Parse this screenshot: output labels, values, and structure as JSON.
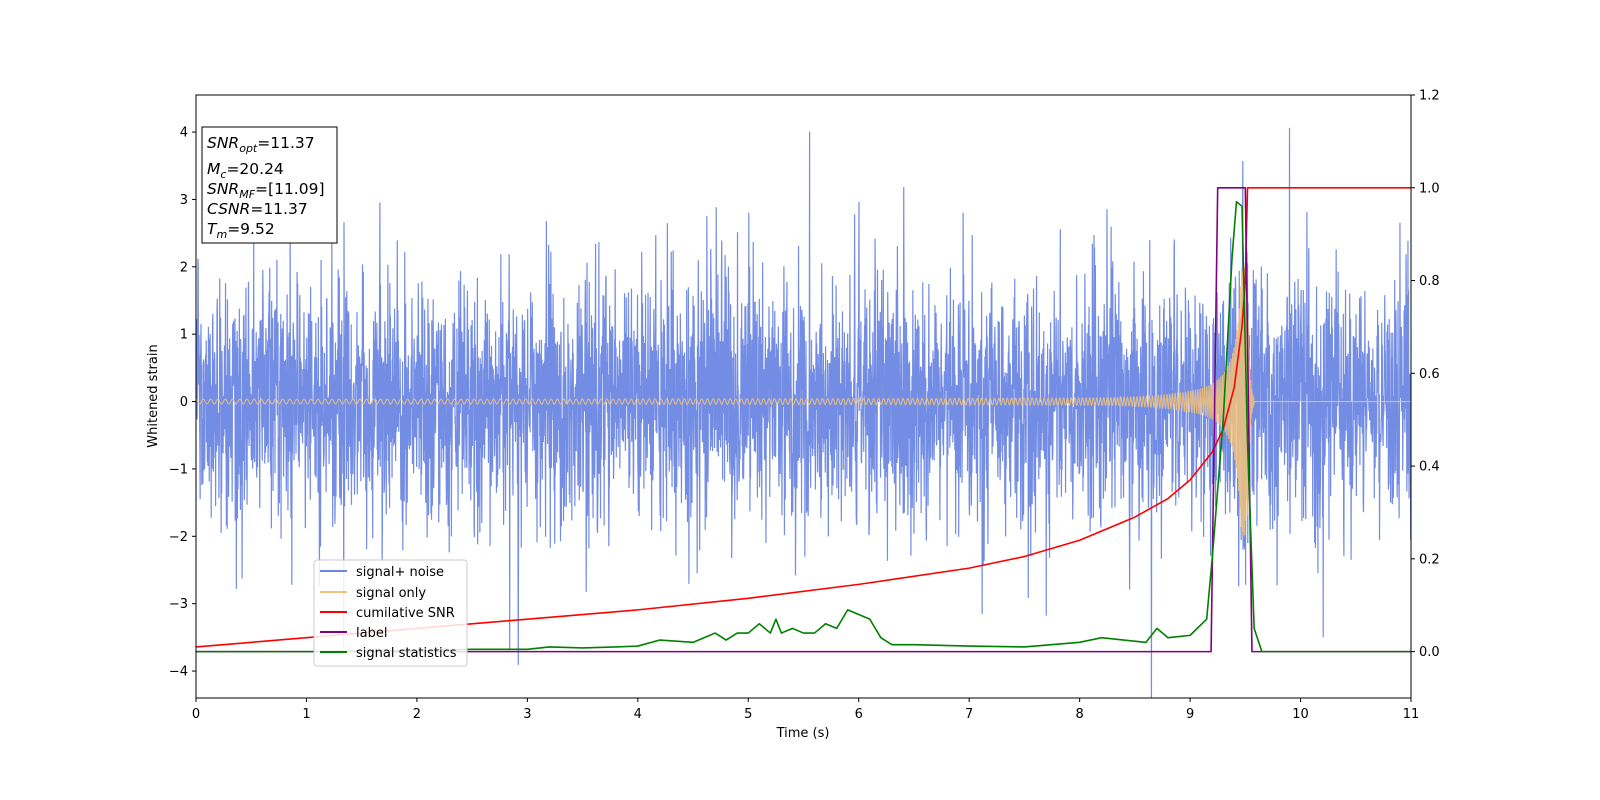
{
  "chart_data": {
    "type": "line",
    "xlabel": "Time (s)",
    "ylabel": "Whitened strain",
    "xlim": [
      0,
      11
    ],
    "ylim": [
      -4.4,
      4.55
    ],
    "y2lim": [
      -0.1,
      1.2
    ],
    "x_ticks": [
      "0",
      "1",
      "2",
      "3",
      "4",
      "5",
      "6",
      "7",
      "8",
      "9",
      "10",
      "11"
    ],
    "y_ticks": [
      "−4",
      "−3",
      "−2",
      "−1",
      "0",
      "1",
      "2",
      "3",
      "4"
    ],
    "y2_ticks": [
      "0.0",
      "0.2",
      "0.4",
      "0.6",
      "0.8",
      "1.0",
      "1.2"
    ],
    "annotations": {
      "snr_opt": "=11.37",
      "mc": "=20.24",
      "snr_mf": "=[11.09]",
      "csnr": "=11.37",
      "tm": "=9.52"
    },
    "legend": {
      "placement": "lower-left",
      "entries": [
        "signal+ noise",
        "signal only",
        "cumilative SNR",
        "label",
        "signal statistics"
      ]
    },
    "series": [
      {
        "name": "signal+ noise",
        "axis": "left",
        "color": "#6b86e3",
        "kind": "gaussian noise plus chirp",
        "noise_std": 0.92,
        "x_range": [
          0,
          11
        ]
      },
      {
        "name": "signal only",
        "axis": "left",
        "color": "#f2c27a",
        "kind": "chirp",
        "merger_time": 9.52,
        "peak_amplitude": 2.0,
        "x_range": [
          0,
          11
        ]
      },
      {
        "name": "cumilative SNR",
        "axis": "right",
        "color": "#ff0000",
        "points": [
          [
            0,
            0.01
          ],
          [
            1,
            0.03
          ],
          [
            2,
            0.05
          ],
          [
            3,
            0.07
          ],
          [
            4,
            0.09
          ],
          [
            5,
            0.115
          ],
          [
            6,
            0.145
          ],
          [
            7,
            0.18
          ],
          [
            7.5,
            0.205
          ],
          [
            8,
            0.24
          ],
          [
            8.5,
            0.29
          ],
          [
            8.8,
            0.33
          ],
          [
            9.0,
            0.37
          ],
          [
            9.2,
            0.43
          ],
          [
            9.3,
            0.48
          ],
          [
            9.4,
            0.57
          ],
          [
            9.47,
            0.7
          ],
          [
            9.5,
            0.8
          ],
          [
            9.52,
            1.0
          ],
          [
            11,
            1.0
          ]
        ]
      },
      {
        "name": "label",
        "axis": "right",
        "color": "#800080",
        "points": [
          [
            0,
            0
          ],
          [
            9.19,
            0
          ],
          [
            9.25,
            1.0
          ],
          [
            9.5,
            1.0
          ],
          [
            9.56,
            0
          ],
          [
            11,
            0
          ]
        ]
      },
      {
        "name": "signal statistics",
        "axis": "right",
        "color": "#008000",
        "points": [
          [
            0,
            0
          ],
          [
            1,
            0
          ],
          [
            2,
            0.002
          ],
          [
            2.5,
            0.005
          ],
          [
            3,
            0.005
          ],
          [
            3.2,
            0.01
          ],
          [
            3.5,
            0.008
          ],
          [
            3.8,
            0.01
          ],
          [
            4.0,
            0.012
          ],
          [
            4.2,
            0.025
          ],
          [
            4.5,
            0.02
          ],
          [
            4.6,
            0.03
          ],
          [
            4.7,
            0.04
          ],
          [
            4.8,
            0.025
          ],
          [
            4.9,
            0.04
          ],
          [
            5.0,
            0.04
          ],
          [
            5.1,
            0.06
          ],
          [
            5.2,
            0.04
          ],
          [
            5.25,
            0.07
          ],
          [
            5.3,
            0.04
          ],
          [
            5.4,
            0.05
          ],
          [
            5.5,
            0.04
          ],
          [
            5.6,
            0.04
          ],
          [
            5.7,
            0.06
          ],
          [
            5.8,
            0.05
          ],
          [
            5.9,
            0.09
          ],
          [
            6.0,
            0.08
          ],
          [
            6.1,
            0.07
          ],
          [
            6.2,
            0.03
          ],
          [
            6.3,
            0.015
          ],
          [
            6.5,
            0.015
          ],
          [
            7.0,
            0.012
          ],
          [
            7.5,
            0.01
          ],
          [
            8.0,
            0.02
          ],
          [
            8.2,
            0.03
          ],
          [
            8.4,
            0.025
          ],
          [
            8.6,
            0.02
          ],
          [
            8.7,
            0.05
          ],
          [
            8.8,
            0.03
          ],
          [
            9.0,
            0.035
          ],
          [
            9.15,
            0.07
          ],
          [
            9.2,
            0.2
          ],
          [
            9.3,
            0.5
          ],
          [
            9.38,
            0.85
          ],
          [
            9.42,
            0.97
          ],
          [
            9.47,
            0.96
          ],
          [
            9.52,
            0.45
          ],
          [
            9.58,
            0.05
          ],
          [
            9.65,
            0
          ],
          [
            11,
            0
          ]
        ]
      }
    ]
  }
}
